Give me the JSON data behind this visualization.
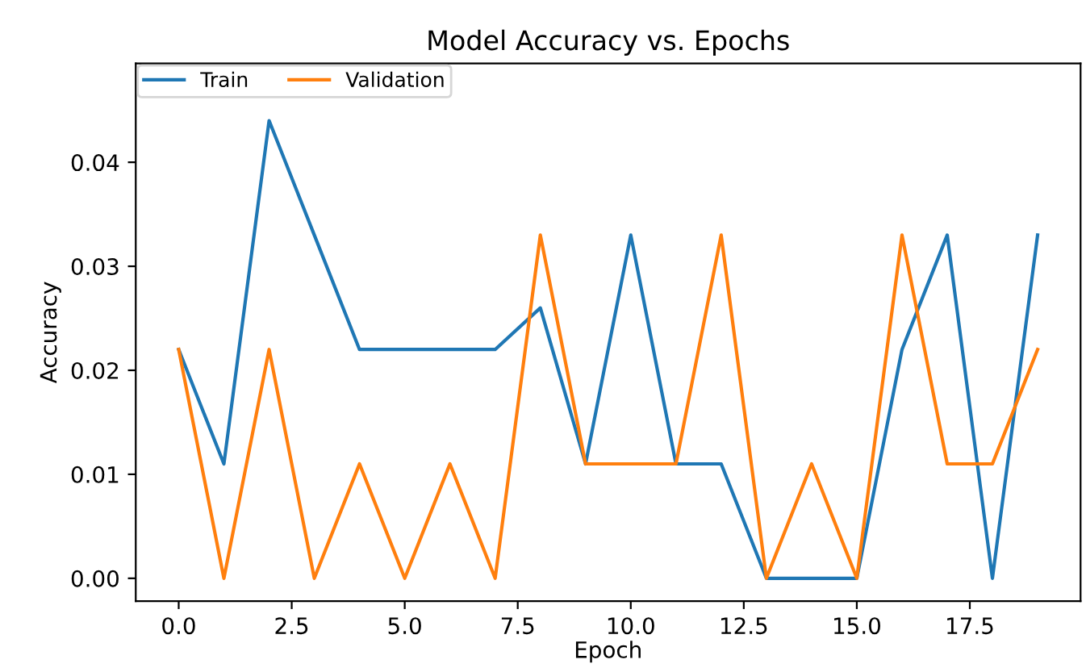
{
  "chart_data": {
    "type": "line",
    "title": "Model Accuracy vs. Epochs",
    "xlabel": "Epoch",
    "ylabel": "Accuracy",
    "x": [
      0,
      1,
      2,
      3,
      4,
      5,
      6,
      7,
      8,
      9,
      10,
      11,
      12,
      13,
      14,
      15,
      16,
      17,
      18,
      19
    ],
    "series": [
      {
        "name": "Train",
        "color": "#1f77b4",
        "values": [
          0.022,
          0.011,
          0.044,
          0.033,
          0.022,
          0.022,
          0.022,
          0.022,
          0.026,
          0.011,
          0.033,
          0.011,
          0.011,
          0.0,
          0.0,
          0.0,
          0.022,
          0.033,
          0.0,
          0.033
        ]
      },
      {
        "name": "Validation",
        "color": "#ff7f0e",
        "values": [
          0.022,
          0.0,
          0.022,
          0.0,
          0.011,
          0.0,
          0.011,
          0.0,
          0.033,
          0.011,
          0.011,
          0.011,
          0.033,
          0.0,
          0.011,
          0.0,
          0.033,
          0.011,
          0.011,
          0.022
        ]
      }
    ],
    "xlim": [
      -0.95,
      19.95
    ],
    "ylim": [
      -0.0022,
      0.0495
    ],
    "xticks": [
      {
        "value": 0,
        "label": "0.0"
      },
      {
        "value": 2.5,
        "label": "2.5"
      },
      {
        "value": 5,
        "label": "5.0"
      },
      {
        "value": 7.5,
        "label": "7.5"
      },
      {
        "value": 10,
        "label": "10.0"
      },
      {
        "value": 12.5,
        "label": "12.5"
      },
      {
        "value": 15,
        "label": "15.0"
      },
      {
        "value": 17.5,
        "label": "17.5"
      }
    ],
    "yticks": [
      {
        "value": 0,
        "label": "0.00"
      },
      {
        "value": 0.01,
        "label": "0.01"
      },
      {
        "value": 0.02,
        "label": "0.02"
      },
      {
        "value": 0.03,
        "label": "0.03"
      },
      {
        "value": 0.04,
        "label": "0.04"
      }
    ],
    "legend": "top left",
    "grid": false,
    "marker": "none",
    "line_style": "solid"
  }
}
